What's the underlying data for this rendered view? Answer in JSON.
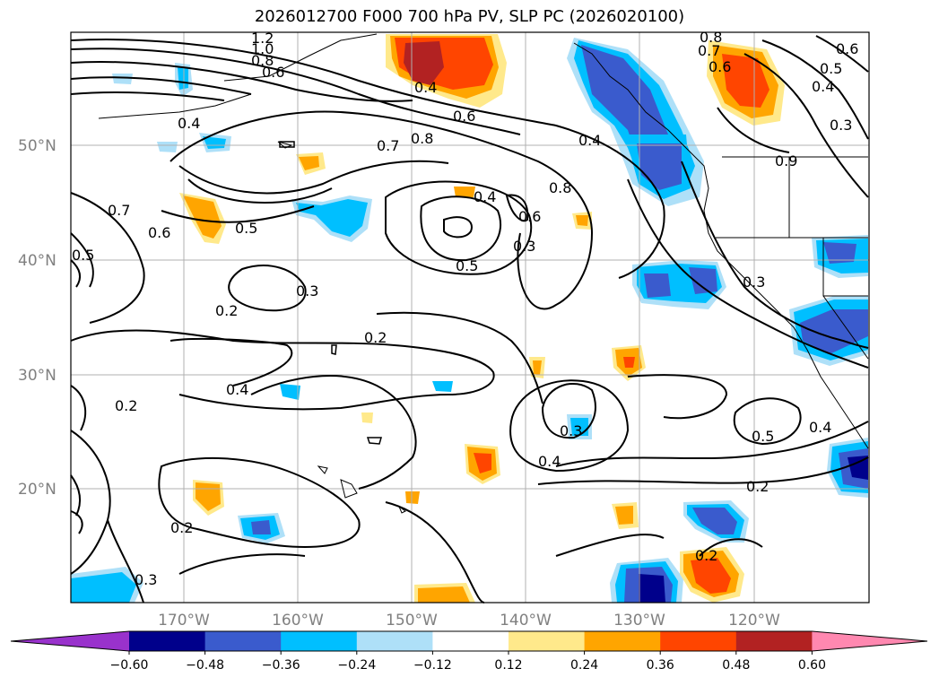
{
  "title": "2026012700 F000 700 hPa PV, SLP PC (2026020100)",
  "map": {
    "lat_labels": [
      "50°N",
      "40°N",
      "30°N",
      "20°N"
    ],
    "lon_labels": [
      "170°W",
      "160°W",
      "150°W",
      "140°W",
      "130°W",
      "120°W"
    ],
    "contour_labels": [
      "1.2",
      "1.0",
      "0.8",
      "0.6",
      "0.4",
      "0.6",
      "0.4",
      "0.7",
      "0.8",
      "0.7",
      "0.6",
      "0.8",
      "0.5",
      "0.4",
      "0.3",
      "0.6",
      "0.7",
      "0.5",
      "0.5",
      "0.6",
      "0.4",
      "0.8",
      "0.4",
      "0.3",
      "0.5",
      "0.3",
      "0.2",
      "0.3",
      "0.2",
      "0.4",
      "0.2",
      "0.3",
      "0.4",
      "0.5",
      "0.4",
      "0.2",
      "0.2",
      "0.2",
      "0.3",
      "0.6",
      "0.9"
    ]
  },
  "colorbar": {
    "ticks": [
      "−0.60",
      "−0.48",
      "−0.36",
      "−0.24",
      "−0.12",
      "0.12",
      "0.24",
      "0.36",
      "0.48",
      "0.60"
    ],
    "colors": [
      "#9932cc",
      "#00008b",
      "#3a5bcd",
      "#00bfff",
      "#aee0f8",
      "#ffffff",
      "#ffe98b",
      "#ffa500",
      "#ff4500",
      "#b22222",
      "#ff88b0"
    ]
  }
}
